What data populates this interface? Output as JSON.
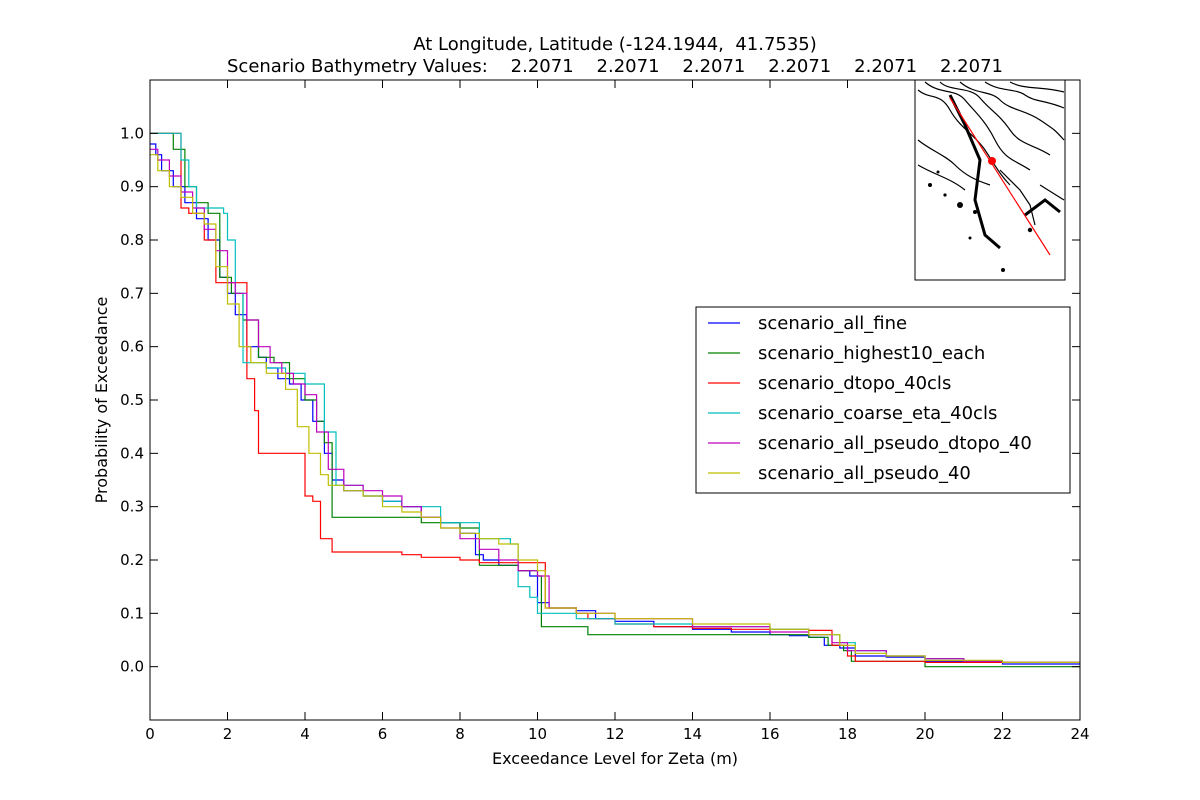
{
  "chart_data": {
    "type": "line",
    "title_line1": "At Longitude, Latitude (-124.1944,  41.7535)",
    "title_line2": "Scenario Bathymetry Values:    2.2071    2.2071    2.2071    2.2071    2.2071    2.2071",
    "xlabel": "Exceedance Level for Zeta (m)",
    "ylabel": "Probability of Exceedance",
    "xlim": [
      0,
      24
    ],
    "ylim": [
      -0.1,
      1.1
    ],
    "xticks": [
      0,
      2,
      4,
      6,
      8,
      10,
      12,
      14,
      16,
      18,
      20,
      22,
      24
    ],
    "yticks": [
      0.0,
      0.1,
      0.2,
      0.3,
      0.4,
      0.5,
      0.6,
      0.7,
      0.8,
      0.9,
      1.0
    ],
    "grid": false,
    "legend_position": "center-right",
    "inset": {
      "type": "map-thumbnail",
      "position": "top-right"
    },
    "series": [
      {
        "name": "scenario_all_fine",
        "color": "#0000ff",
        "x": [
          0,
          0.15,
          0.3,
          0.6,
          0.9,
          1.2,
          1.5,
          1.8,
          2.0,
          2.2,
          2.5,
          2.8,
          3.0,
          3.3,
          3.6,
          3.9,
          4.2,
          4.5,
          4.7,
          5.0,
          5.5,
          6.0,
          6.5,
          7.0,
          7.5,
          8.0,
          8.4,
          8.6,
          9.0,
          9.5,
          9.8,
          10.0,
          10.3,
          11.0,
          11.5,
          12.0,
          13.0,
          14.0,
          15.0,
          16.0,
          16.5,
          17.0,
          17.4,
          17.8,
          18.2,
          19.0,
          20.0,
          21.0,
          22.0,
          24.0
        ],
        "y": [
          0.98,
          0.96,
          0.93,
          0.9,
          0.87,
          0.84,
          0.8,
          0.73,
          0.7,
          0.66,
          0.6,
          0.58,
          0.56,
          0.54,
          0.53,
          0.5,
          0.46,
          0.4,
          0.35,
          0.33,
          0.32,
          0.31,
          0.3,
          0.28,
          0.27,
          0.25,
          0.21,
          0.2,
          0.19,
          0.18,
          0.17,
          0.12,
          0.11,
          0.105,
          0.09,
          0.085,
          0.075,
          0.07,
          0.065,
          0.06,
          0.058,
          0.055,
          0.04,
          0.035,
          0.02,
          0.018,
          0.01,
          0.008,
          0.005,
          0.004
        ]
      },
      {
        "name": "scenario_highest10_each",
        "color": "#008000",
        "x": [
          0,
          0.6,
          0.9,
          1.2,
          1.5,
          1.8,
          2.1,
          2.4,
          2.8,
          3.2,
          3.6,
          4.0,
          4.3,
          4.5,
          4.7,
          6.0,
          7.0,
          8.0,
          8.5,
          9.0,
          9.5,
          10.0,
          10.1,
          11.3,
          12.0,
          14.0,
          16.0,
          17.0,
          17.5,
          17.9,
          18.1,
          19.0,
          20.0,
          22.0,
          24.0
        ],
        "y": [
          1.0,
          0.97,
          0.9,
          0.87,
          0.85,
          0.73,
          0.7,
          0.65,
          0.58,
          0.57,
          0.54,
          0.5,
          0.46,
          0.42,
          0.28,
          0.28,
          0.27,
          0.26,
          0.19,
          0.19,
          0.18,
          0.17,
          0.075,
          0.06,
          0.06,
          0.06,
          0.06,
          0.055,
          0.04,
          0.03,
          0.01,
          0.01,
          0.0,
          0.0,
          0.0
        ]
      },
      {
        "name": "scenario_dtopo_40cls",
        "color": "#ff0000",
        "x": [
          0,
          0.8,
          1.0,
          1.4,
          1.7,
          2.1,
          2.5,
          2.7,
          2.8,
          3.6,
          4.0,
          4.2,
          4.4,
          4.7,
          6.5,
          7.0,
          8.0,
          8.5,
          9.0,
          10.0,
          10.2,
          11.0,
          11.3,
          12.0,
          13.0,
          14.0,
          15.0,
          17.0,
          17.6,
          18.0,
          18.2,
          20.0,
          24.0
        ],
        "y": [
          1.0,
          0.86,
          0.85,
          0.8,
          0.72,
          0.72,
          0.54,
          0.48,
          0.4,
          0.4,
          0.32,
          0.31,
          0.24,
          0.215,
          0.21,
          0.205,
          0.2,
          0.195,
          0.195,
          0.195,
          0.11,
          0.1,
          0.09,
          0.08,
          0.075,
          0.072,
          0.07,
          0.068,
          0.04,
          0.02,
          0.01,
          0.008,
          0.008
        ]
      },
      {
        "name": "scenario_coarse_eta_40cls",
        "color": "#00bfbf",
        "x": [
          0,
          0.8,
          1.0,
          1.2,
          1.6,
          1.9,
          2.0,
          2.2,
          2.4,
          2.6,
          3.0,
          3.5,
          4.0,
          4.5,
          4.8,
          5.5,
          6.0,
          6.5,
          7.5,
          8.5,
          9.3,
          9.5,
          9.8,
          10.0,
          10.3,
          11.0,
          12.0,
          14.0,
          16.0,
          17.0,
          17.8,
          18.2,
          19.0,
          20.0,
          21.0,
          22.0,
          24.0
        ],
        "y": [
          1.0,
          0.95,
          0.9,
          0.86,
          0.86,
          0.85,
          0.8,
          0.7,
          0.57,
          0.57,
          0.56,
          0.55,
          0.53,
          0.44,
          0.34,
          0.32,
          0.31,
          0.3,
          0.27,
          0.24,
          0.23,
          0.15,
          0.13,
          0.1,
          0.1,
          0.09,
          0.08,
          0.075,
          0.07,
          0.06,
          0.045,
          0.03,
          0.02,
          0.015,
          0.01,
          0.008,
          0.006
        ]
      },
      {
        "name": "scenario_all_pseudo_dtopo_40",
        "color": "#bf00bf",
        "x": [
          0,
          0.2,
          0.5,
          0.8,
          1.1,
          1.4,
          1.7,
          2.0,
          2.2,
          2.5,
          2.8,
          3.1,
          3.4,
          3.7,
          4.0,
          4.3,
          4.6,
          5.0,
          5.5,
          6.0,
          6.5,
          7.0,
          7.5,
          8.0,
          8.5,
          9.0,
          9.5,
          10.0,
          10.3,
          11.0,
          12.0,
          14.0,
          16.0,
          17.0,
          17.6,
          18.0,
          19.0,
          20.0,
          21.0,
          22.0,
          24.0
        ],
        "y": [
          0.97,
          0.95,
          0.92,
          0.89,
          0.86,
          0.82,
          0.78,
          0.72,
          0.7,
          0.65,
          0.6,
          0.57,
          0.55,
          0.53,
          0.51,
          0.44,
          0.37,
          0.34,
          0.33,
          0.32,
          0.3,
          0.28,
          0.26,
          0.24,
          0.22,
          0.2,
          0.18,
          0.17,
          0.11,
          0.1,
          0.09,
          0.075,
          0.065,
          0.06,
          0.045,
          0.03,
          0.02,
          0.015,
          0.01,
          0.008,
          0.006
        ]
      },
      {
        "name": "scenario_all_pseudo_40",
        "color": "#bfbf00",
        "x": [
          0,
          0.2,
          0.5,
          0.8,
          1.1,
          1.4,
          1.7,
          2.0,
          2.3,
          2.6,
          3.0,
          3.5,
          3.8,
          4.1,
          4.4,
          4.6,
          5.0,
          5.5,
          6.0,
          6.5,
          7.0,
          7.5,
          8.0,
          8.5,
          9.0,
          9.5,
          10.0,
          10.2,
          11.0,
          12.0,
          14.0,
          16.0,
          17.0,
          17.8,
          18.2,
          19.0,
          20.0,
          22.0,
          24.0
        ],
        "y": [
          0.96,
          0.93,
          0.9,
          0.88,
          0.85,
          0.83,
          0.75,
          0.68,
          0.6,
          0.57,
          0.55,
          0.52,
          0.45,
          0.4,
          0.36,
          0.34,
          0.33,
          0.32,
          0.3,
          0.29,
          0.28,
          0.26,
          0.25,
          0.24,
          0.23,
          0.2,
          0.18,
          0.11,
          0.1,
          0.09,
          0.08,
          0.07,
          0.06,
          0.04,
          0.025,
          0.02,
          0.012,
          0.008,
          0.006
        ]
      }
    ]
  }
}
